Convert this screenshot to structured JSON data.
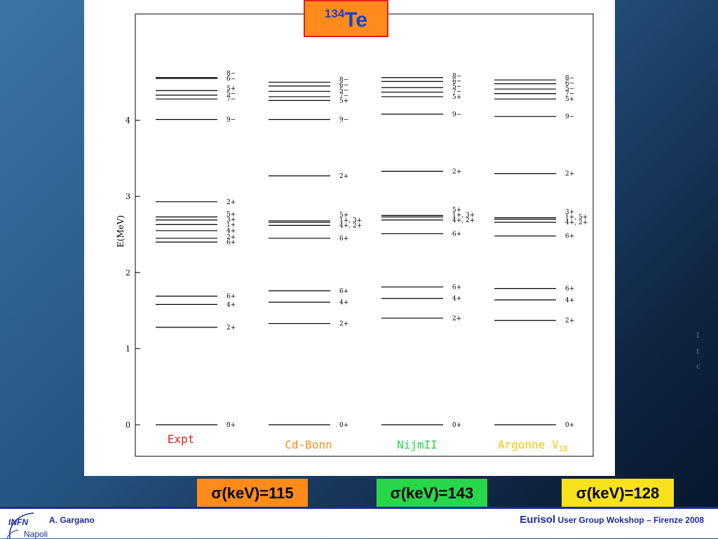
{
  "title": {
    "mass": "134",
    "element": "Te"
  },
  "chart_data": {
    "type": "energy-level-diagram",
    "ylabel": "E(MeV)",
    "ylim": [
      0,
      5.4
    ],
    "yticks": [
      0,
      1,
      2,
      3,
      4
    ],
    "grid": false,
    "columns": [
      {
        "name": "Expt",
        "color": "#e0201e",
        "levels": [
          {
            "e": 0.0,
            "label": "0+"
          },
          {
            "e": 1.28,
            "label": "2+"
          },
          {
            "e": 1.58,
            "label": "4+"
          },
          {
            "e": 1.69,
            "label": "6+"
          },
          {
            "e": 2.4,
            "label": "6+"
          },
          {
            "e": 2.45,
            "label": "2+"
          },
          {
            "e": 2.55,
            "label": "4+"
          },
          {
            "e": 2.63,
            "label": "1+"
          },
          {
            "e": 2.69,
            "label": "3+"
          },
          {
            "e": 2.73,
            "label": "5+"
          },
          {
            "e": 2.93,
            "label": "2+"
          },
          {
            "e": 4.01,
            "label": "9−"
          },
          {
            "e": 4.28,
            "label": "7−"
          },
          {
            "e": 4.33,
            "label": "5−"
          },
          {
            "e": 4.39,
            "label": "5+"
          },
          {
            "e": 4.55,
            "label": "6−"
          },
          {
            "e": 4.56,
            "label": "8−"
          }
        ]
      },
      {
        "name": "Cd-Bonn",
        "color": "#ff8c1a",
        "levels": [
          {
            "e": 0.0,
            "label": "0+"
          },
          {
            "e": 1.33,
            "label": "2+"
          },
          {
            "e": 1.61,
            "label": "4+"
          },
          {
            "e": 1.76,
            "label": "6+"
          },
          {
            "e": 2.45,
            "label": "6+"
          },
          {
            "e": 2.62,
            "label": "4+, 2+"
          },
          {
            "e": 2.66,
            "label": "1+, 3+"
          },
          {
            "e": 2.68,
            "label": "5+"
          },
          {
            "e": 3.27,
            "label": "2+"
          },
          {
            "e": 4.01,
            "label": "9−"
          },
          {
            "e": 4.26,
            "label": "5+"
          },
          {
            "e": 4.31,
            "label": "7−"
          },
          {
            "e": 4.38,
            "label": "5−"
          },
          {
            "e": 4.45,
            "label": "6−"
          },
          {
            "e": 4.5,
            "label": "8−"
          }
        ]
      },
      {
        "name": "NijmII",
        "color": "#28d64a",
        "levels": [
          {
            "e": 0.0,
            "label": "0+"
          },
          {
            "e": 1.4,
            "label": "2+"
          },
          {
            "e": 1.66,
            "label": "4+"
          },
          {
            "e": 1.81,
            "label": "6+"
          },
          {
            "e": 2.51,
            "label": "6+"
          },
          {
            "e": 2.69,
            "label": "4+, 2+"
          },
          {
            "e": 2.73,
            "label": "1+, 3+"
          },
          {
            "e": 2.75,
            "label": "5+"
          },
          {
            "e": 3.33,
            "label": "2+"
          },
          {
            "e": 4.08,
            "label": "9−"
          },
          {
            "e": 4.31,
            "label": "5+"
          },
          {
            "e": 4.37,
            "label": "7−"
          },
          {
            "e": 4.43,
            "label": "5−"
          },
          {
            "e": 4.51,
            "label": "6−"
          },
          {
            "e": 4.56,
            "label": "8−"
          }
        ]
      },
      {
        "name": "Argonne V",
        "name_sub": "18",
        "color": "#f7c600",
        "levels": [
          {
            "e": 0.0,
            "label": "0+"
          },
          {
            "e": 1.37,
            "label": "2+"
          },
          {
            "e": 1.64,
            "label": "4+"
          },
          {
            "e": 1.79,
            "label": "6+"
          },
          {
            "e": 2.48,
            "label": "6+"
          },
          {
            "e": 2.66,
            "label": "4+, 2+"
          },
          {
            "e": 2.7,
            "label": "1+, 5+"
          },
          {
            "e": 2.72,
            "label": "3+"
          },
          {
            "e": 3.3,
            "label": "2+"
          },
          {
            "e": 4.05,
            "label": "9−"
          },
          {
            "e": 4.28,
            "label": "5+"
          },
          {
            "e": 4.35,
            "label": "7−"
          },
          {
            "e": 4.41,
            "label": "5−"
          },
          {
            "e": 4.48,
            "label": "6−"
          },
          {
            "e": 4.53,
            "label": "8−"
          }
        ]
      }
    ]
  },
  "sigma": [
    {
      "text": "σ(keV)=115",
      "color": "#ff8c1a"
    },
    {
      "text": "σ(keV)=143",
      "color": "#28d64a"
    },
    {
      "text": "σ(keV)=128",
      "color": "#f7e21c"
    }
  ],
  "footer": {
    "author": "A. Gargano",
    "event_name": "Eurisol",
    "event_rest": "User Group Wokshop – Firenze  2008",
    "logo_text": "INFN",
    "logo_city": "Napoli"
  }
}
